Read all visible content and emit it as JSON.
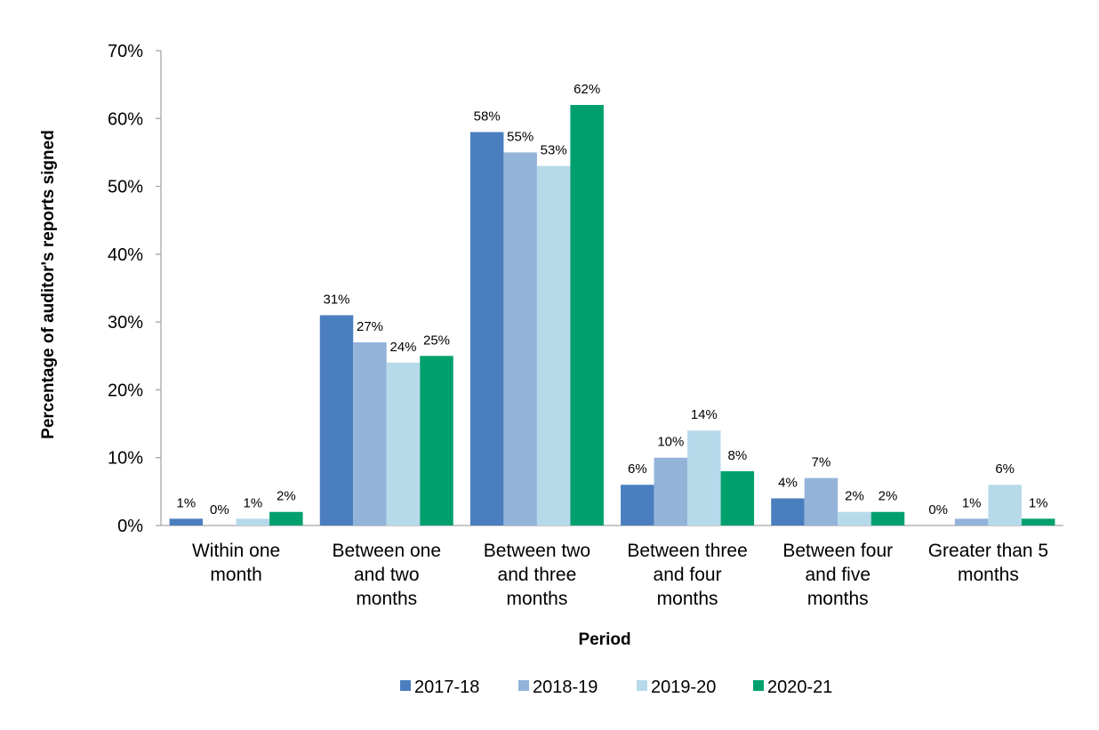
{
  "chart_data": {
    "type": "bar",
    "title": "",
    "xlabel": "Period",
    "ylabel": "Percentage of auditor's reports signed",
    "ylim": [
      0,
      70
    ],
    "yticks": [
      "0%",
      "10%",
      "20%",
      "30%",
      "40%",
      "50%",
      "60%",
      "70%"
    ],
    "categories": [
      [
        "Within one",
        "month"
      ],
      [
        "Between one",
        "and two",
        "months"
      ],
      [
        "Between two",
        "and three",
        "months"
      ],
      [
        "Between three",
        "and four",
        "months"
      ],
      [
        "Between four",
        "and five",
        "months"
      ],
      [
        "Greater than 5",
        "months"
      ]
    ],
    "series": [
      {
        "name": "2017-18",
        "color": "#4a7ebf",
        "values": [
          1,
          31,
          58,
          6,
          4,
          0
        ]
      },
      {
        "name": "2018-19",
        "color": "#93b3d9",
        "values": [
          0,
          27,
          55,
          10,
          7,
          1
        ]
      },
      {
        "name": "2019-20",
        "color": "#b7daeb",
        "values": [
          1,
          24,
          53,
          14,
          2,
          6
        ]
      },
      {
        "name": "2020-21",
        "color": "#00a06e",
        "values": [
          2,
          25,
          62,
          8,
          2,
          1
        ]
      }
    ],
    "data_labels": [
      [
        "1%",
        "31%",
        "58%",
        "6%",
        "4%",
        "0%"
      ],
      [
        "0%",
        "27%",
        "55%",
        "10%",
        "7%",
        "1%"
      ],
      [
        "1%",
        "24%",
        "53%",
        "14%",
        "2%",
        "6%"
      ],
      [
        "2%",
        "25%",
        "62%",
        "8%",
        "2%",
        "1%"
      ]
    ],
    "legend_position": "bottom",
    "grid": false
  }
}
